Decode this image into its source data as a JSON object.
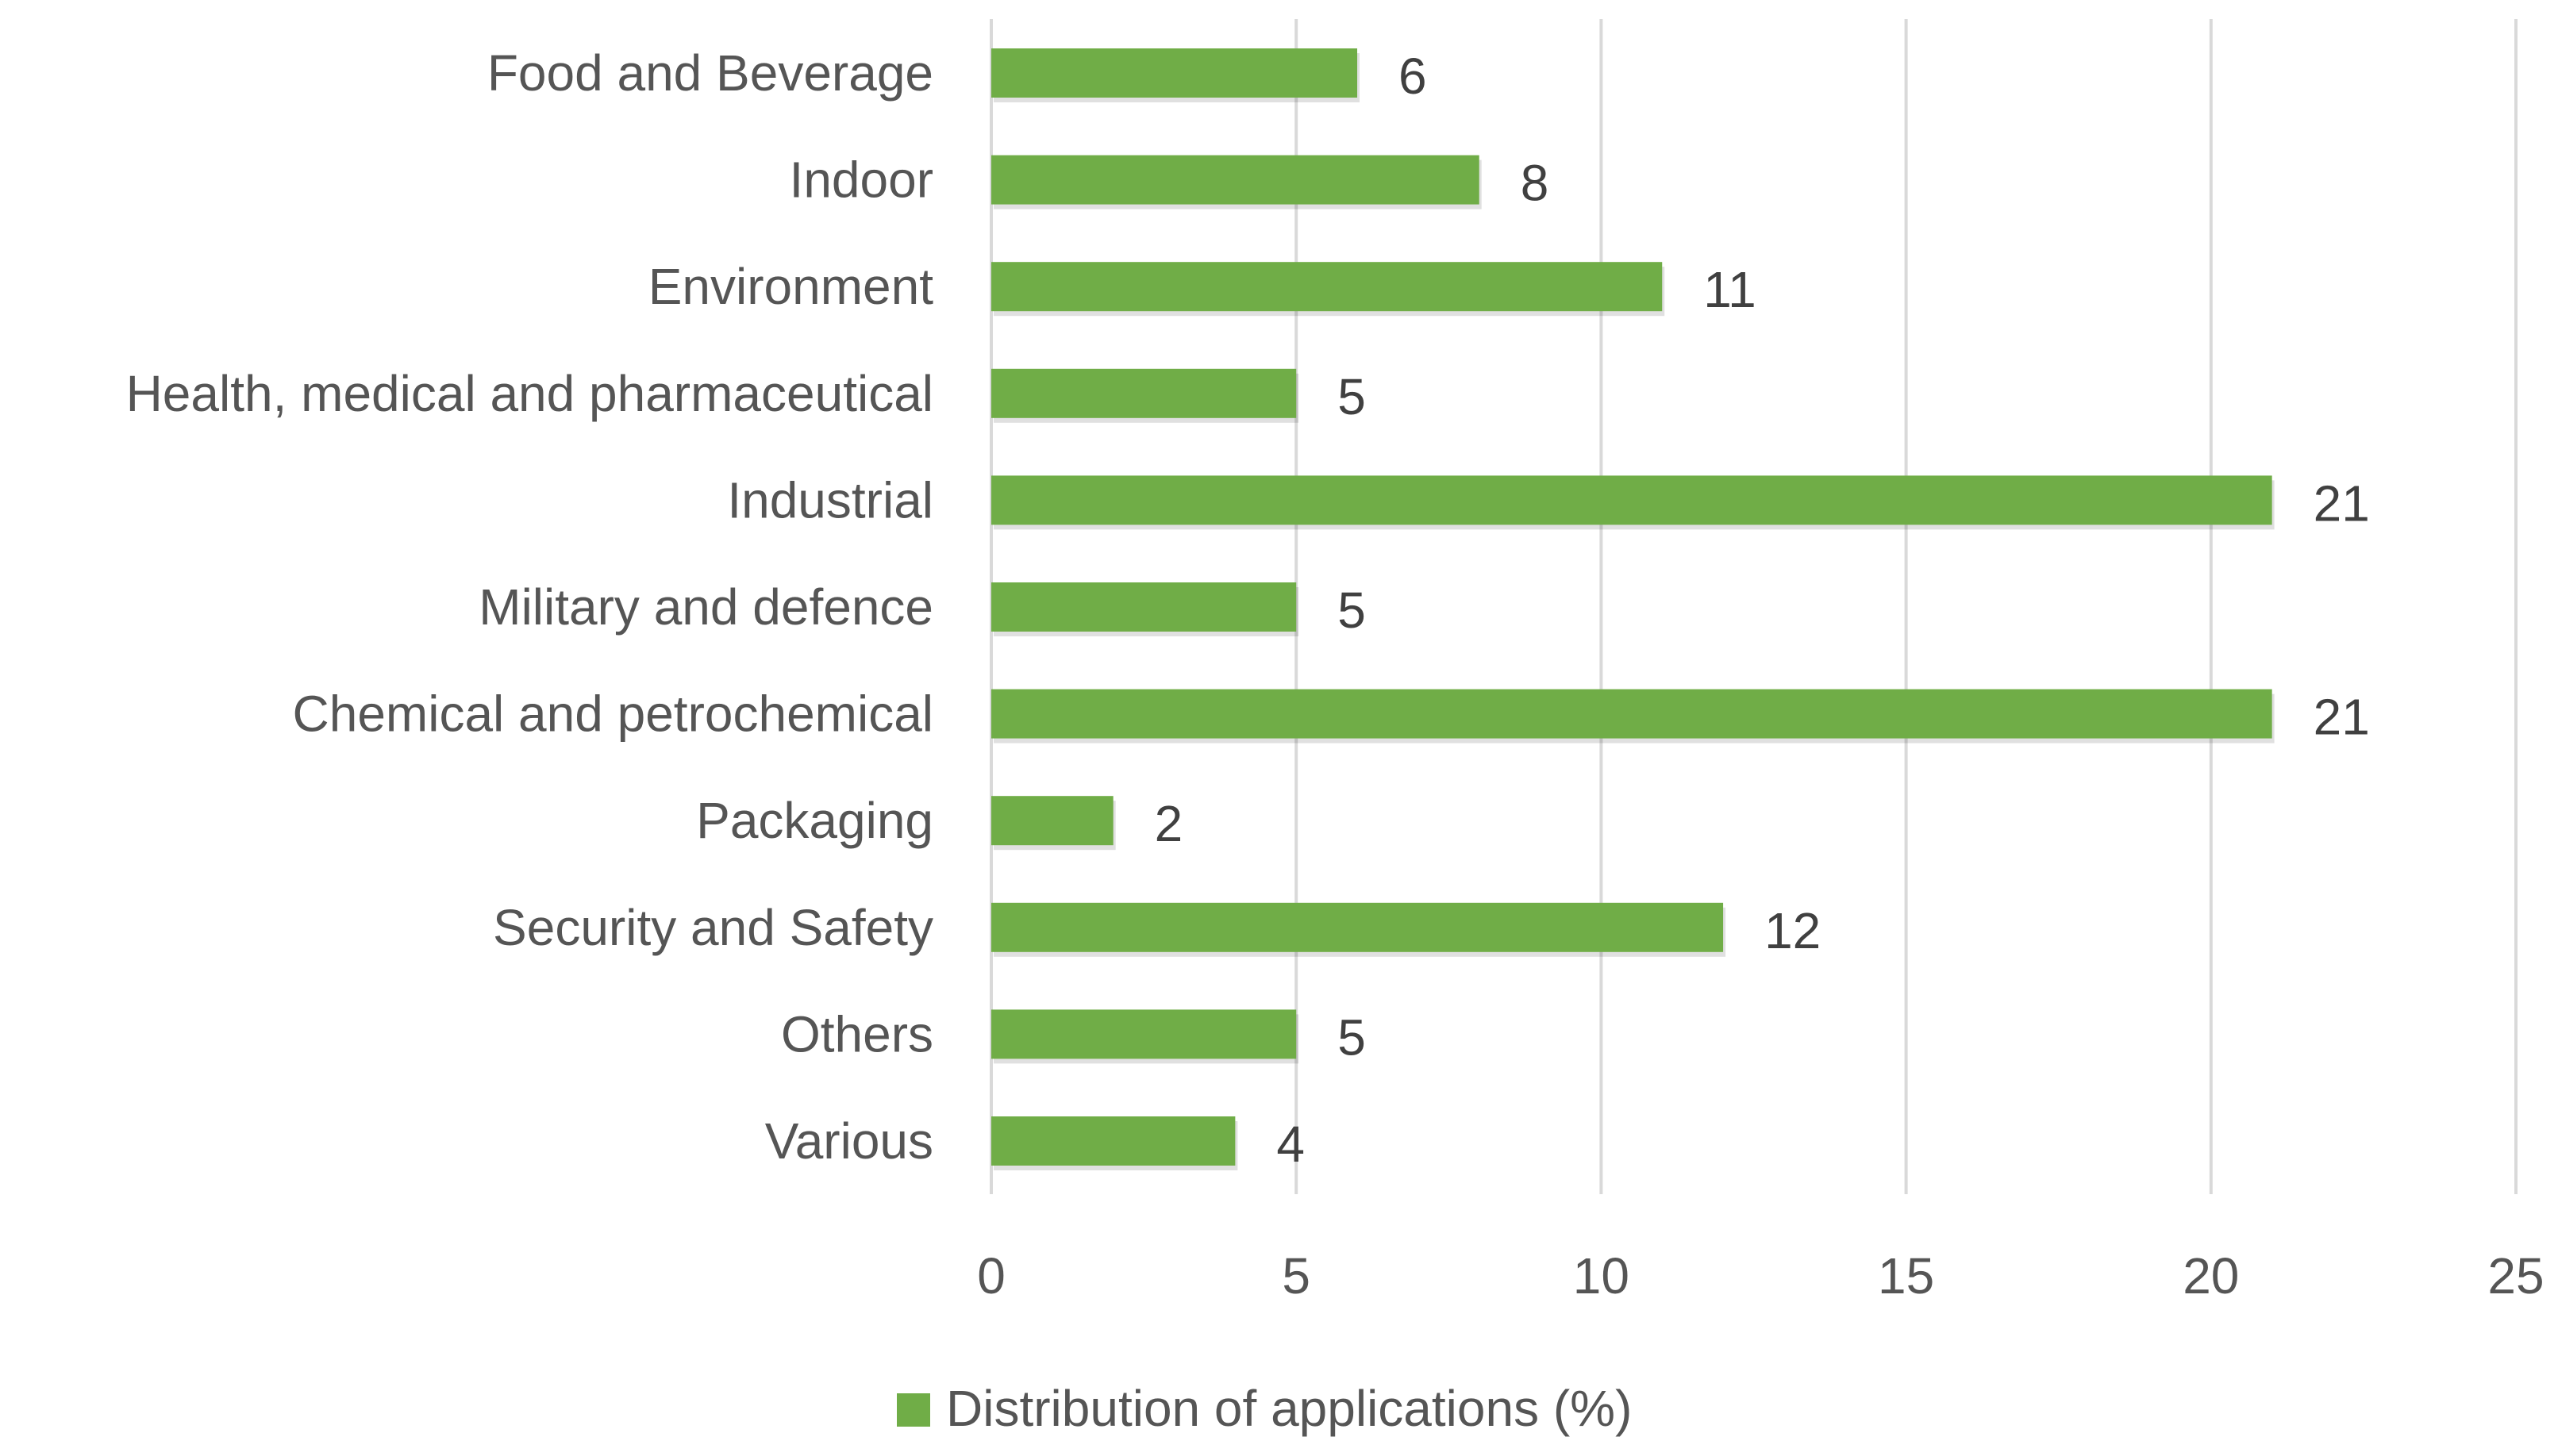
{
  "chart_data": {
    "type": "bar",
    "orientation": "horizontal",
    "categories": [
      "Food and Beverage",
      "Indoor",
      "Environment",
      "Health, medical and pharmaceutical",
      "Industrial",
      "Military and defence",
      "Chemical and petrochemical",
      "Packaging",
      "Security and Safety",
      "Others",
      "Various"
    ],
    "series": [
      {
        "name": "Distribution of applications (%)",
        "values": [
          6,
          8,
          11,
          5,
          21,
          5,
          21,
          2,
          12,
          5,
          4
        ],
        "color": "#70ad47"
      }
    ],
    "xlim": [
      0,
      25
    ],
    "xticks": [
      0,
      5,
      10,
      15,
      20,
      25
    ],
    "title": "",
    "xlabel": "",
    "ylabel": "",
    "grid": true,
    "legend_position": "bottom"
  }
}
